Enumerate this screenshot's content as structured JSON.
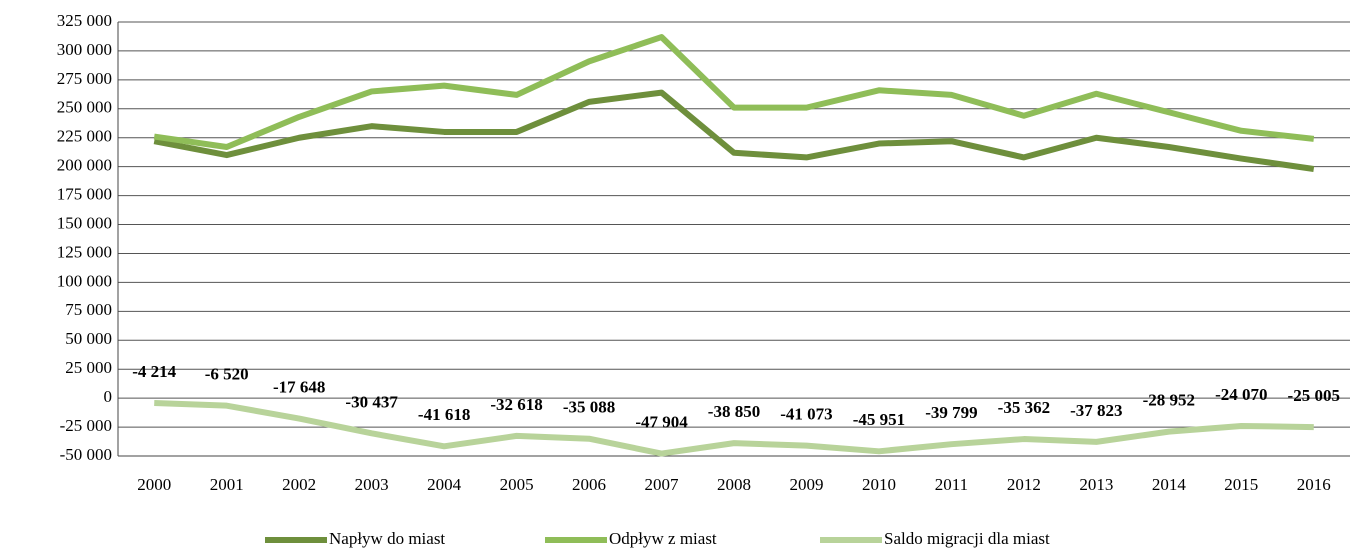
{
  "chart_data": {
    "type": "line",
    "categories": [
      "2000",
      "2001",
      "2002",
      "2003",
      "2004",
      "2005",
      "2006",
      "2007",
      "2008",
      "2009",
      "2010",
      "2011",
      "2012",
      "2013",
      "2014",
      "2015",
      "2016"
    ],
    "series": [
      {
        "name": "Napływ do miast",
        "color": "#6e8f3c",
        "values": [
          222000,
          210000,
          225000,
          235000,
          230000,
          230000,
          256000,
          264000,
          212000,
          208000,
          220000,
          222000,
          208000,
          225000,
          217000,
          207000,
          198000
        ]
      },
      {
        "name": "Odpływ z miast",
        "color": "#8fbd58",
        "values": [
          226000,
          217000,
          243000,
          265000,
          270000,
          262000,
          291000,
          312000,
          251000,
          251000,
          266000,
          262000,
          244000,
          263000,
          247000,
          231000,
          224000
        ]
      },
      {
        "name": "Saldo migracji dla miast",
        "color": "#b8d39a",
        "values": [
          -4214,
          -6520,
          -17648,
          -30437,
          -41618,
          -32618,
          -35088,
          -47904,
          -38850,
          -41073,
          -45951,
          -39799,
          -35362,
          -37823,
          -28952,
          -24070,
          -25005
        ],
        "value_labels": [
          "-4 214",
          "-6 520",
          "-17 648",
          "-30 437",
          "-41 618",
          "-32 618",
          "-35 088",
          "-47 904",
          "-38 850",
          "-41 073",
          "-45 951",
          "-39 799",
          "-35 362",
          "-37 823",
          "-28 952",
          "-24 070",
          "-25 005"
        ]
      }
    ],
    "ylim": [
      -50000,
      325000
    ],
    "yticks": [
      {
        "value": -50000,
        "label": "-50 000"
      },
      {
        "value": -25000,
        "label": "-25 000"
      },
      0,
      {
        "value": 25000,
        "label": "25 000"
      },
      {
        "value": 50000,
        "label": "50 000"
      },
      {
        "value": 75000,
        "label": "75 000"
      },
      {
        "value": 100000,
        "label": "100 000"
      },
      {
        "value": 125000,
        "label": "125 000"
      },
      {
        "value": 150000,
        "label": "150 000"
      },
      {
        "value": 175000,
        "label": "175 000"
      },
      {
        "value": 200000,
        "label": "200 000"
      },
      {
        "value": 225000,
        "label": "225 000"
      },
      {
        "value": 250000,
        "label": "250 000"
      },
      {
        "value": 275000,
        "label": "275 000"
      },
      {
        "value": 300000,
        "label": "300 000"
      },
      {
        "value": 325000,
        "label": "325 000"
      }
    ],
    "grid": true,
    "legend": "bottom"
  }
}
